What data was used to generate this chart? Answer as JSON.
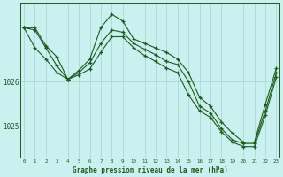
{
  "title": "Graphe pression niveau de la mer (hPa)",
  "bg_color": "#caf0f0",
  "line_color": "#1a5c1a",
  "grid_color": "#a0d8d0",
  "x_labels": [
    "0",
    "1",
    "2",
    "3",
    "4",
    "5",
    "6",
    "7",
    "8",
    "9",
    "10",
    "11",
    "12",
    "13",
    "14",
    "15",
    "16",
    "17",
    "18",
    "19",
    "20",
    "21",
    "22",
    "23"
  ],
  "yticks": [
    1025,
    1026
  ],
  "ylim": [
    1024.3,
    1027.75
  ],
  "xlim": [
    -0.3,
    23.3
  ],
  "series1": [
    1027.2,
    1027.2,
    1026.8,
    1026.55,
    1026.05,
    1026.25,
    1026.5,
    1027.2,
    1027.5,
    1027.35,
    1026.95,
    1026.85,
    1026.75,
    1026.65,
    1026.5,
    1026.2,
    1025.65,
    1025.45,
    1025.1,
    1024.85,
    1024.65,
    1024.65,
    1025.5,
    1026.3
  ],
  "series2": [
    1027.2,
    1027.15,
    1026.75,
    1026.35,
    1026.05,
    1026.2,
    1026.42,
    1026.85,
    1027.15,
    1027.1,
    1026.85,
    1026.72,
    1026.6,
    1026.45,
    1026.38,
    1026.0,
    1025.45,
    1025.3,
    1024.95,
    1024.7,
    1024.62,
    1024.62,
    1025.35,
    1026.2
  ],
  "series3": [
    1027.2,
    1026.75,
    1026.5,
    1026.2,
    1026.05,
    1026.15,
    1026.28,
    1026.65,
    1027.0,
    1027.0,
    1026.75,
    1026.58,
    1026.45,
    1026.3,
    1026.2,
    1025.7,
    1025.35,
    1025.2,
    1024.88,
    1024.65,
    1024.55,
    1024.55,
    1025.25,
    1026.1
  ]
}
